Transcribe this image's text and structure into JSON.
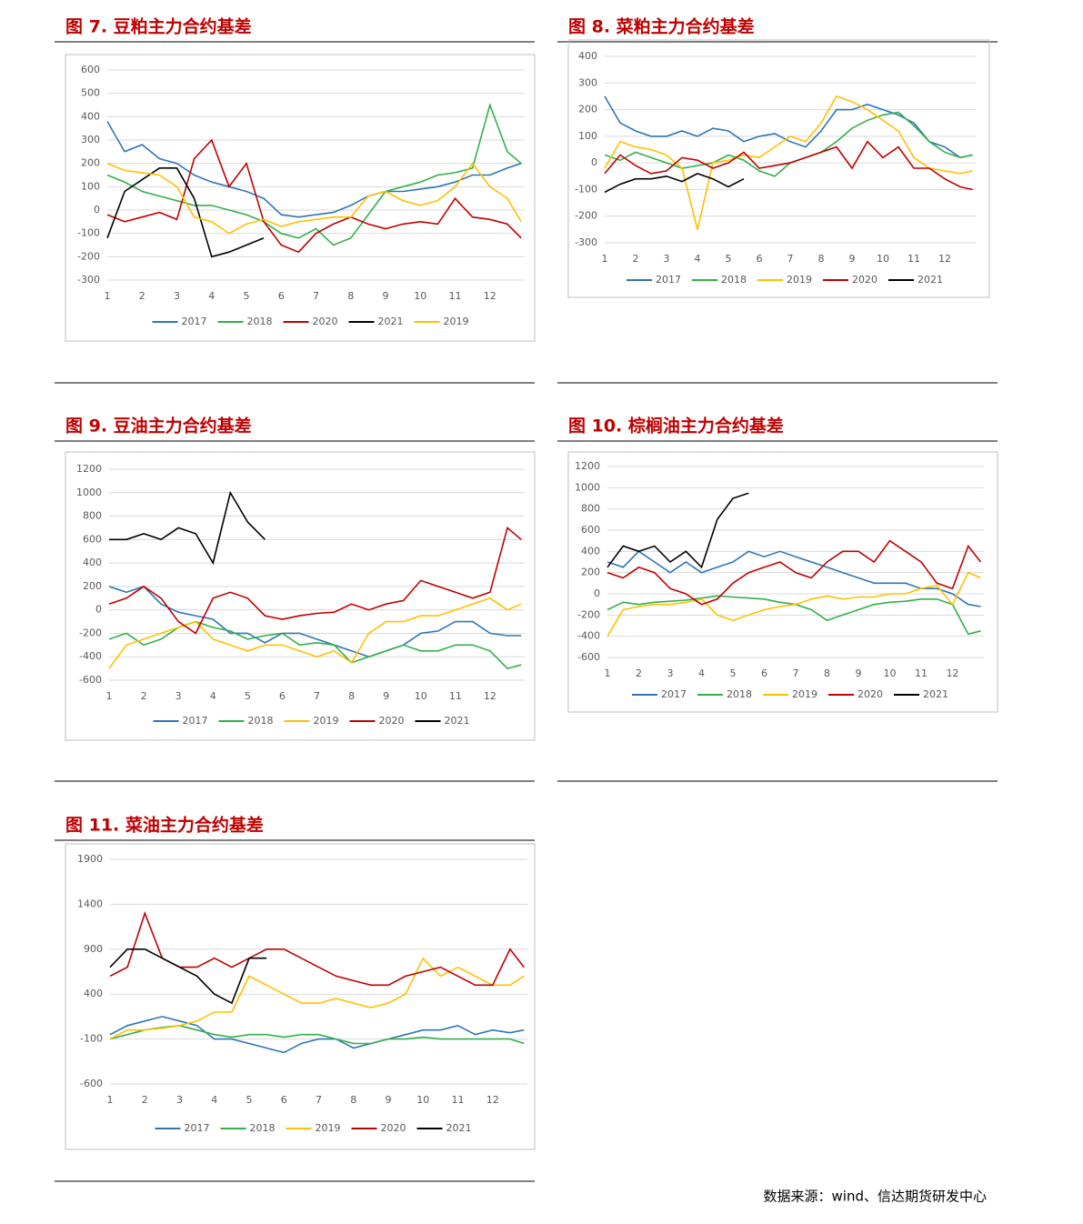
{
  "chart_data": [
    {
      "type": "line",
      "title": "图 7. 豆粕主力合约基差",
      "xlim": [
        1,
        13
      ],
      "xticks": [
        1,
        2,
        3,
        4,
        5,
        6,
        7,
        8,
        9,
        10,
        11,
        12
      ],
      "ylim": [
        -300,
        600
      ],
      "yticks": [
        -300,
        -200,
        -100,
        0,
        100,
        200,
        300,
        400,
        500,
        600
      ],
      "grid": true,
      "x": [
        1,
        1.5,
        2,
        2.5,
        3,
        3.5,
        4,
        4.5,
        5,
        5.5,
        6,
        6.5,
        7,
        7.5,
        8,
        8.5,
        9,
        9.5,
        10,
        10.5,
        11,
        11.5,
        12,
        12.5,
        12.9
      ],
      "series": [
        {
          "name": "2017",
          "color": "#2e75b6",
          "values": [
            380,
            250,
            280,
            220,
            200,
            150,
            120,
            100,
            80,
            50,
            -20,
            -30,
            -20,
            -10,
            20,
            60,
            80,
            80,
            90,
            100,
            120,
            150,
            150,
            180,
            200
          ]
        },
        {
          "name": "2018",
          "color": "#33b04a",
          "values": [
            150,
            120,
            80,
            60,
            40,
            20,
            20,
            0,
            -20,
            -50,
            -100,
            -120,
            -80,
            -150,
            -120,
            -20,
            80,
            100,
            120,
            150,
            160,
            180,
            450,
            250,
            200
          ]
        },
        {
          "name": "2020",
          "color": "#c00000",
          "values": [
            -20,
            -50,
            -30,
            -10,
            -40,
            220,
            300,
            100,
            200,
            -50,
            -150,
            -180,
            -100,
            -60,
            -30,
            -60,
            -80,
            -60,
            -50,
            -60,
            50,
            -30,
            -40,
            -60,
            -120
          ]
        },
        {
          "name": "2021",
          "color": "#000000",
          "values": [
            -120,
            80,
            130,
            180,
            180,
            50,
            -200,
            -180,
            -150,
            -120,
            null,
            null,
            null,
            null,
            null,
            null,
            null,
            null,
            null,
            null,
            null,
            null,
            null,
            null,
            null
          ]
        },
        {
          "name": "2019",
          "color": "#ffc000",
          "values": [
            200,
            170,
            160,
            150,
            100,
            -30,
            -50,
            -100,
            -60,
            -40,
            -70,
            -50,
            -40,
            -30,
            -30,
            60,
            80,
            40,
            20,
            40,
            100,
            200,
            100,
            50,
            -50
          ]
        }
      ]
    },
    {
      "type": "line",
      "title": "图 8. 菜粕主力合约基差",
      "xlim": [
        1,
        13
      ],
      "xticks": [
        1,
        2,
        3,
        4,
        5,
        6,
        7,
        8,
        9,
        10,
        11,
        12
      ],
      "ylim": [
        -300,
        400
      ],
      "yticks": [
        -300,
        -200,
        -100,
        0,
        100,
        200,
        300,
        400
      ],
      "grid": true,
      "x": [
        1,
        1.5,
        2,
        2.5,
        3,
        3.5,
        4,
        4.5,
        5,
        5.5,
        6,
        6.5,
        7,
        7.5,
        8,
        8.5,
        9,
        9.5,
        10,
        10.5,
        11,
        11.5,
        12,
        12.5,
        12.9
      ],
      "series": [
        {
          "name": "2017",
          "color": "#2e75b6",
          "values": [
            250,
            150,
            120,
            100,
            100,
            120,
            100,
            130,
            120,
            80,
            100,
            110,
            80,
            60,
            120,
            200,
            200,
            220,
            200,
            180,
            150,
            80,
            60,
            20,
            30
          ]
        },
        {
          "name": "2018",
          "color": "#33b04a",
          "values": [
            30,
            10,
            40,
            20,
            0,
            -20,
            -10,
            0,
            30,
            10,
            -30,
            -50,
            0,
            20,
            40,
            80,
            130,
            160,
            180,
            190,
            140,
            80,
            40,
            20,
            30
          ]
        },
        {
          "name": "2019",
          "color": "#ffc000",
          "values": [
            -20,
            80,
            60,
            50,
            30,
            -20,
            -250,
            0,
            10,
            30,
            20,
            60,
            100,
            80,
            150,
            250,
            230,
            200,
            160,
            120,
            20,
            -20,
            -30,
            -40,
            -30
          ]
        },
        {
          "name": "2020",
          "color": "#c00000",
          "values": [
            -40,
            30,
            -10,
            -40,
            -30,
            20,
            10,
            -20,
            0,
            40,
            -20,
            -10,
            0,
            20,
            40,
            60,
            -20,
            80,
            20,
            60,
            -20,
            -20,
            -60,
            -90,
            -100
          ]
        },
        {
          "name": "2021",
          "color": "#000000",
          "values": [
            -110,
            -80,
            -60,
            -60,
            -50,
            -70,
            -40,
            -60,
            -90,
            -60,
            null,
            null,
            null,
            null,
            null,
            null,
            null,
            null,
            null,
            null,
            null,
            null,
            null,
            null,
            null
          ]
        }
      ]
    },
    {
      "type": "line",
      "title": "图 9. 豆油主力合约基差",
      "xlim": [
        1,
        13
      ],
      "xticks": [
        1,
        2,
        3,
        4,
        5,
        6,
        7,
        8,
        9,
        10,
        11,
        12
      ],
      "ylim": [
        -600,
        1200
      ],
      "yticks": [
        -600,
        -400,
        -200,
        0,
        200,
        400,
        600,
        800,
        1000,
        1200
      ],
      "grid": true,
      "x": [
        1,
        1.5,
        2,
        2.5,
        3,
        3.5,
        4,
        4.5,
        5,
        5.5,
        6,
        6.5,
        7,
        7.5,
        8,
        8.5,
        9,
        9.5,
        10,
        10.5,
        11,
        11.5,
        12,
        12.5,
        12.9
      ],
      "series": [
        {
          "name": "2017",
          "color": "#2e75b6",
          "values": [
            200,
            150,
            200,
            50,
            -20,
            -50,
            -80,
            -200,
            -200,
            -280,
            -200,
            -200,
            -250,
            -300,
            -350,
            -400,
            -350,
            -300,
            -200,
            -180,
            -100,
            -100,
            -200,
            -220,
            -220
          ]
        },
        {
          "name": "2018",
          "color": "#33b04a",
          "values": [
            -250,
            -200,
            -300,
            -250,
            -150,
            -100,
            -150,
            -180,
            -250,
            -220,
            -200,
            -300,
            -280,
            -300,
            -450,
            -400,
            -350,
            -300,
            -350,
            -350,
            -300,
            -300,
            -350,
            -500,
            -470
          ]
        },
        {
          "name": "2019",
          "color": "#ffc000",
          "values": [
            -500,
            -300,
            -250,
            -200,
            -150,
            -100,
            -250,
            -300,
            -350,
            -300,
            -300,
            -350,
            -400,
            -350,
            -450,
            -200,
            -100,
            -100,
            -50,
            -50,
            0,
            50,
            100,
            0,
            50
          ]
        },
        {
          "name": "2020",
          "color": "#c00000",
          "values": [
            50,
            100,
            200,
            100,
            -100,
            -200,
            100,
            150,
            100,
            -50,
            -80,
            -50,
            -30,
            -20,
            50,
            0,
            50,
            80,
            250,
            200,
            150,
            100,
            150,
            700,
            600
          ]
        },
        {
          "name": "2021",
          "color": "#000000",
          "values": [
            600,
            600,
            650,
            600,
            700,
            650,
            400,
            1000,
            750,
            600,
            null,
            null,
            null,
            null,
            null,
            null,
            null,
            null,
            null,
            null,
            null,
            null,
            null,
            null,
            null
          ]
        }
      ]
    },
    {
      "type": "line",
      "title": "图 10. 棕榈油主力合约基差",
      "xlim": [
        1,
        13
      ],
      "xticks": [
        1,
        2,
        3,
        4,
        5,
        6,
        7,
        8,
        9,
        10,
        11,
        12
      ],
      "ylim": [
        -600,
        1200
      ],
      "yticks": [
        -600,
        -400,
        -200,
        0,
        200,
        400,
        600,
        800,
        1000,
        1200
      ],
      "grid": true,
      "x": [
        1,
        1.5,
        2,
        2.5,
        3,
        3.5,
        4,
        4.5,
        5,
        5.5,
        6,
        6.5,
        7,
        7.5,
        8,
        8.5,
        9,
        9.5,
        10,
        10.5,
        11,
        11.5,
        12,
        12.5,
        12.9
      ],
      "series": [
        {
          "name": "2017",
          "color": "#2e75b6",
          "values": [
            300,
            250,
            400,
            300,
            200,
            300,
            200,
            250,
            300,
            400,
            350,
            400,
            350,
            300,
            250,
            200,
            150,
            100,
            100,
            100,
            50,
            50,
            0,
            -100,
            -120
          ]
        },
        {
          "name": "2018",
          "color": "#33b04a",
          "values": [
            -150,
            -80,
            -100,
            -80,
            -70,
            -60,
            -40,
            -20,
            -30,
            -40,
            -50,
            -80,
            -100,
            -150,
            -250,
            -200,
            -150,
            -100,
            -80,
            -70,
            -50,
            -50,
            -100,
            -380,
            -350
          ]
        },
        {
          "name": "2019",
          "color": "#ffc000",
          "values": [
            -400,
            -150,
            -120,
            -100,
            -100,
            -80,
            -50,
            -200,
            -250,
            -200,
            -150,
            -120,
            -100,
            -50,
            -20,
            -50,
            -30,
            -30,
            0,
            0,
            50,
            80,
            -100,
            200,
            150
          ]
        },
        {
          "name": "2020",
          "color": "#c00000",
          "values": [
            200,
            150,
            250,
            200,
            50,
            0,
            -100,
            -50,
            100,
            200,
            250,
            300,
            200,
            150,
            300,
            400,
            400,
            300,
            500,
            400,
            300,
            100,
            50,
            450,
            300
          ]
        },
        {
          "name": "2021",
          "color": "#000000",
          "values": [
            250,
            450,
            400,
            450,
            300,
            400,
            250,
            700,
            900,
            950,
            null,
            null,
            null,
            null,
            null,
            null,
            null,
            null,
            null,
            null,
            null,
            null,
            null,
            null,
            null
          ]
        }
      ]
    },
    {
      "type": "line",
      "title": "图 11. 菜油主力合约基差",
      "xlim": [
        1,
        13
      ],
      "xticks": [
        1,
        2,
        3,
        4,
        5,
        6,
        7,
        8,
        9,
        10,
        11,
        12
      ],
      "ylim": [
        -600,
        1900
      ],
      "yticks": [
        -600,
        -100,
        400,
        900,
        1400,
        1900
      ],
      "grid": true,
      "x": [
        1,
        1.5,
        2,
        2.5,
        3,
        3.5,
        4,
        4.5,
        5,
        5.5,
        6,
        6.5,
        7,
        7.5,
        8,
        8.5,
        9,
        9.5,
        10,
        10.5,
        11,
        11.5,
        12,
        12.5,
        12.9
      ],
      "series": [
        {
          "name": "2017",
          "color": "#2e75b6",
          "values": [
            -50,
            50,
            100,
            150,
            100,
            50,
            -100,
            -100,
            -150,
            -200,
            -250,
            -150,
            -100,
            -100,
            -200,
            -150,
            -100,
            -50,
            0,
            0,
            50,
            -50,
            0,
            -30,
            0
          ]
        },
        {
          "name": "2018",
          "color": "#33b04a",
          "values": [
            -100,
            -50,
            0,
            30,
            50,
            0,
            -50,
            -80,
            -50,
            -50,
            -80,
            -50,
            -50,
            -100,
            -150,
            -150,
            -100,
            -100,
            -80,
            -100,
            -100,
            -100,
            -100,
            -100,
            -150
          ]
        },
        {
          "name": "2019",
          "color": "#ffc000",
          "values": [
            -100,
            0,
            0,
            20,
            50,
            100,
            200,
            200,
            600,
            500,
            400,
            300,
            300,
            350,
            300,
            250,
            300,
            400,
            800,
            600,
            700,
            600,
            500,
            500,
            600
          ]
        },
        {
          "name": "2020",
          "color": "#c00000",
          "values": [
            600,
            700,
            1300,
            800,
            700,
            700,
            800,
            700,
            800,
            900,
            900,
            800,
            700,
            600,
            550,
            500,
            500,
            600,
            650,
            700,
            600,
            500,
            500,
            900,
            700
          ]
        },
        {
          "name": "2021",
          "color": "#000000",
          "values": [
            700,
            900,
            900,
            800,
            700,
            600,
            400,
            300,
            800,
            800,
            null,
            null,
            null,
            null,
            null,
            null,
            null,
            null,
            null,
            null,
            null,
            null,
            null,
            null,
            null
          ]
        }
      ]
    }
  ],
  "source": "数据来源：wind、信达期货研发中心"
}
